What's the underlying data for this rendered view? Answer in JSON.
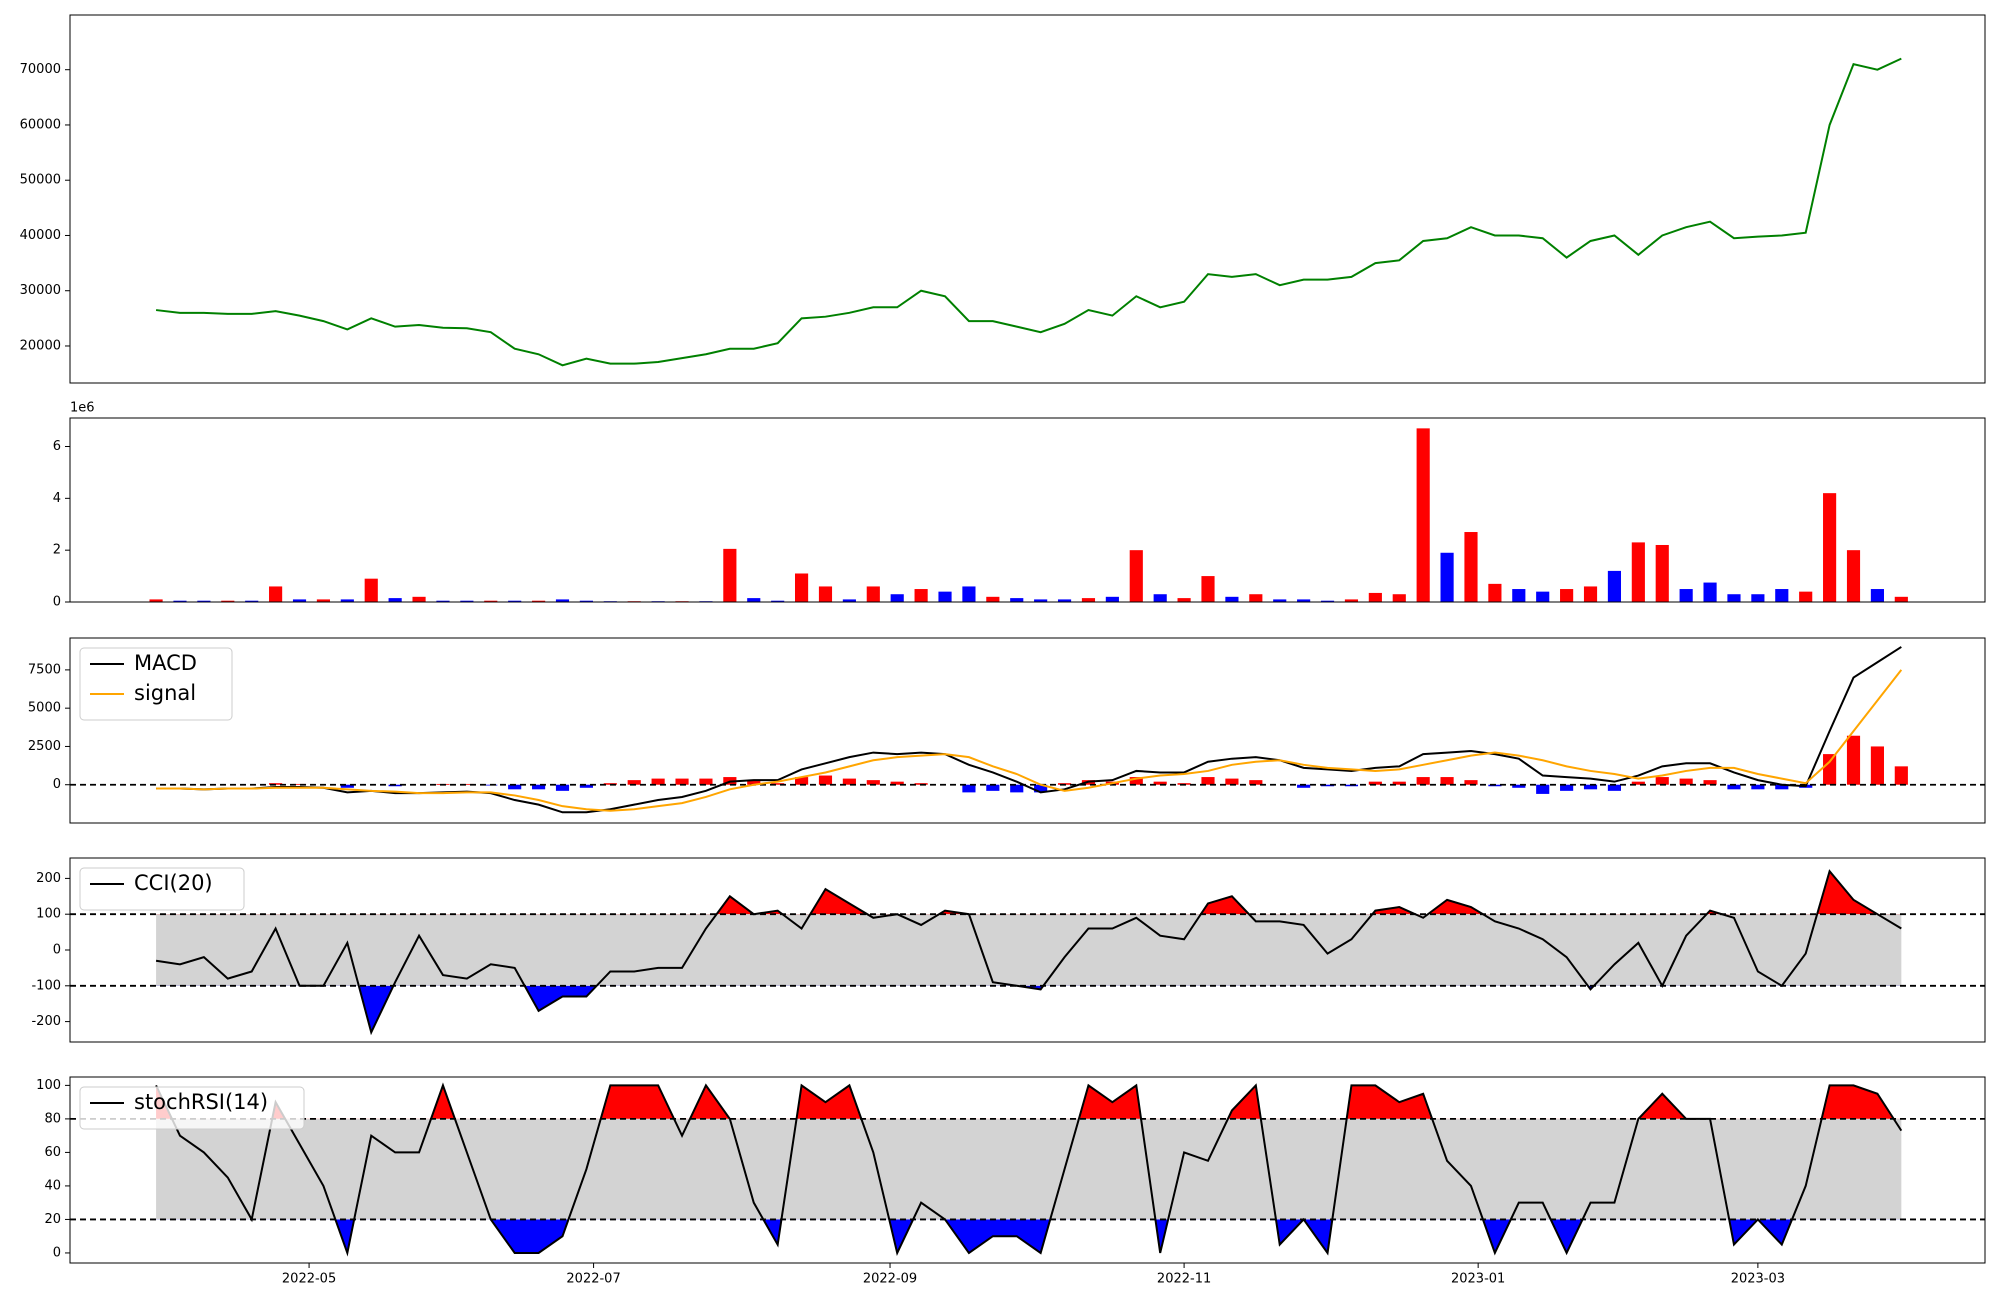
{
  "chart_data": [
    {
      "type": "line",
      "xlim": [
        -3.6,
        76.5
      ],
      "ylim": [
        13300,
        79900
      ],
      "yticks": [
        20000,
        30000,
        40000,
        50000,
        60000,
        70000
      ],
      "series": [
        {
          "color": "#008000",
          "values": [
            26500,
            26000,
            26000,
            25800,
            25800,
            26300,
            25500,
            24500,
            23000,
            25000,
            23500,
            23800,
            23300,
            23200,
            22500,
            19500,
            18500,
            16500,
            17700,
            16800,
            16800,
            17100,
            17800,
            18500,
            19500,
            19500,
            20500,
            25000,
            25300,
            26000,
            27000,
            27000,
            30000,
            29000,
            24500,
            24500,
            23500,
            22500,
            24000,
            26500,
            25500,
            29000,
            27000,
            28000,
            33000,
            32500,
            33000,
            31000,
            32000,
            32000,
            32500,
            35000,
            35500,
            39000,
            39500,
            41500,
            40000,
            40000,
            39500,
            36000,
            39000,
            40000,
            36500,
            40000,
            41500,
            42500,
            39500,
            39800,
            40000,
            40500,
            60000,
            71000,
            70000,
            72000
          ]
        }
      ]
    },
    {
      "type": "bar",
      "xlim": [
        -3.6,
        76.5
      ],
      "ylim": [
        0,
        7100000
      ],
      "offset_label": "1e6",
      "yticks": [
        {
          "value": 0,
          "label": "0"
        },
        {
          "value": 2000000,
          "label": "2"
        },
        {
          "value": 4000000,
          "label": "4"
        },
        {
          "value": 6000000,
          "label": "6"
        }
      ],
      "values": [
        100000,
        50000,
        50000,
        50000,
        50000,
        600000,
        100000,
        100000,
        100000,
        900000,
        150000,
        200000,
        50000,
        50000,
        50000,
        50000,
        50000,
        100000,
        50000,
        30000,
        30000,
        30000,
        30000,
        30000,
        2050000,
        150000,
        50000,
        1100000,
        600000,
        100000,
        600000,
        300000,
        500000,
        400000,
        600000,
        200000,
        150000,
        100000,
        100000,
        150000,
        200000,
        2000000,
        300000,
        150000,
        1000000,
        200000,
        300000,
        100000,
        100000,
        50000,
        100000,
        350000,
        300000,
        6700000,
        1900000,
        2700000,
        700000,
        500000,
        400000,
        500000,
        600000,
        1200000,
        2300000,
        2200000,
        500000,
        750000,
        300000,
        300000,
        500000,
        400000,
        4200000,
        2000000,
        500000,
        200000
      ],
      "colors": [
        "#ff0000",
        "#0000ff",
        "#0000ff",
        "#ff0000",
        "#0000ff",
        "#ff0000",
        "#0000ff",
        "#ff0000",
        "#0000ff",
        "#ff0000",
        "#0000ff",
        "#ff0000",
        "#0000ff",
        "#0000ff",
        "#ff0000",
        "#0000ff",
        "#ff0000",
        "#0000ff",
        "#0000ff",
        "#0000ff",
        "#ff0000",
        "#0000ff",
        "#ff0000",
        "#0000ff",
        "#ff0000",
        "#0000ff",
        "#0000ff",
        "#ff0000",
        "#ff0000",
        "#0000ff",
        "#ff0000",
        "#0000ff",
        "#ff0000",
        "#0000ff",
        "#0000ff",
        "#ff0000",
        "#0000ff",
        "#0000ff",
        "#0000ff",
        "#ff0000",
        "#0000ff",
        "#ff0000",
        "#0000ff",
        "#ff0000",
        "#ff0000",
        "#0000ff",
        "#ff0000",
        "#0000ff",
        "#0000ff",
        "#0000ff",
        "#ff0000",
        "#ff0000",
        "#ff0000",
        "#ff0000",
        "#0000ff",
        "#ff0000",
        "#ff0000",
        "#0000ff",
        "#0000ff",
        "#ff0000",
        "#ff0000",
        "#0000ff",
        "#ff0000",
        "#ff0000",
        "#0000ff",
        "#0000ff",
        "#0000ff",
        "#0000ff",
        "#0000ff",
        "#ff0000",
        "#ff0000",
        "#ff0000",
        "#0000ff",
        "#ff0000"
      ]
    },
    {
      "type": "macd",
      "xlim": [
        -3.6,
        76.5
      ],
      "ylim": [
        -2500,
        9583
      ],
      "yticks": [
        0,
        2500,
        5000,
        7500
      ],
      "hlines": [
        0
      ],
      "series": [
        {
          "name": "MACD",
          "color": "#000000",
          "values": [
            -250,
            -250,
            -300,
            -250,
            -250,
            -150,
            -150,
            -200,
            -500,
            -400,
            -550,
            -550,
            -500,
            -450,
            -550,
            -1000,
            -1300,
            -1800,
            -1800,
            -1600,
            -1300,
            -1000,
            -800,
            -400,
            200,
            300,
            300,
            1000,
            1400,
            1800,
            2100,
            2000,
            2100,
            2000,
            1300,
            800,
            200,
            -500,
            -300,
            200,
            300,
            900,
            800,
            800,
            1500,
            1700,
            1800,
            1600,
            1100,
            1000,
            900,
            1100,
            1200,
            2000,
            2100,
            2200,
            2000,
            1700,
            600,
            500,
            400,
            200,
            600,
            1200,
            1400,
            1400,
            800,
            300,
            0,
            -100,
            3500,
            7000,
            8000,
            9000
          ]
        },
        {
          "name": "signal",
          "color": "#ffa500",
          "values": [
            -250,
            -250,
            -300,
            -250,
            -250,
            -200,
            -200,
            -200,
            -300,
            -400,
            -450,
            -550,
            -550,
            -500,
            -500,
            -700,
            -1000,
            -1400,
            -1600,
            -1700,
            -1600,
            -1400,
            -1200,
            -800,
            -300,
            0,
            200,
            500,
            800,
            1200,
            1600,
            1800,
            1900,
            2000,
            1800,
            1200,
            700,
            0,
            -400,
            -200,
            100,
            400,
            600,
            700,
            900,
            1300,
            1500,
            1600,
            1300,
            1100,
            1000,
            900,
            1000,
            1300,
            1600,
            1900,
            2100,
            1900,
            1600,
            1200,
            900,
            700,
            400,
            600,
            900,
            1100,
            1100,
            700,
            400,
            100,
            1500,
            3500,
            5500,
            7500
          ]
        }
      ],
      "histogram": {
        "up_color": "#ff0000",
        "down_color": "#0000ff",
        "values": [
          0,
          0,
          0,
          0,
          0,
          100,
          50,
          0,
          -200,
          0,
          -100,
          0,
          50,
          50,
          -50,
          -300,
          -300,
          -400,
          -200,
          100,
          300,
          400,
          400,
          400,
          500,
          300,
          100,
          500,
          600,
          400,
          300,
          200,
          100,
          0,
          -500,
          -400,
          -500,
          -500,
          100,
          300,
          200,
          500,
          200,
          100,
          500,
          400,
          300,
          0,
          -200,
          -100,
          -100,
          200,
          200,
          500,
          500,
          300,
          -100,
          -200,
          -600,
          -400,
          -300,
          -400,
          200,
          500,
          400,
          300,
          -300,
          -300,
          -300,
          -200,
          2000,
          3200,
          2500,
          1200
        ]
      }
    },
    {
      "type": "oscillator",
      "xlim": [
        -3.6,
        76.5
      ],
      "ylim": [
        -257,
        257
      ],
      "yticks": [
        -200,
        -100,
        0,
        100,
        200
      ],
      "hlines": [
        100,
        -100
      ],
      "fill_colors": {
        "above": "#ff0000",
        "below": "#0000ff",
        "band": "#d3d3d3"
      },
      "series": [
        {
          "name": "CCI(20)",
          "color": "#000000",
          "values": [
            -30,
            -40,
            -20,
            -80,
            -60,
            60,
            -100,
            -100,
            20,
            -230,
            -90,
            40,
            -70,
            -80,
            -40,
            -50,
            -170,
            -130,
            -130,
            -60,
            -60,
            -50,
            -50,
            60,
            150,
            100,
            110,
            60,
            170,
            130,
            90,
            100,
            70,
            110,
            100,
            -90,
            -100,
            -110,
            -20,
            60,
            60,
            90,
            40,
            30,
            130,
            150,
            80,
            80,
            70,
            -10,
            30,
            110,
            120,
            90,
            140,
            120,
            80,
            60,
            30,
            -20,
            -110,
            -40,
            20,
            -100,
            40,
            110,
            90,
            -60,
            -100,
            -10,
            220,
            140,
            100,
            60
          ]
        }
      ]
    },
    {
      "type": "oscillator",
      "xlim": [
        -3.6,
        76.5
      ],
      "ylim": [
        -6,
        105
      ],
      "yticks": [
        0,
        20,
        40,
        60,
        80,
        100
      ],
      "hlines": [
        80,
        20
      ],
      "fill_colors": {
        "above": "#ff0000",
        "below": "#0000ff",
        "band": "#d3d3d3"
      },
      "xticks": [
        {
          "value": 6.4,
          "label": "2022-05"
        },
        {
          "value": 18.3,
          "label": "2022-07"
        },
        {
          "value": 30.7,
          "label": "2022-09"
        },
        {
          "value": 43,
          "label": "2022-11"
        },
        {
          "value": 55.3,
          "label": "2023-01"
        },
        {
          "value": 67,
          "label": "2023-03"
        }
      ],
      "series": [
        {
          "name": "stochRSI(14)",
          "color": "#000000",
          "values": [
            100,
            70,
            60,
            45,
            20,
            90,
            65,
            40,
            0,
            70,
            60,
            60,
            100,
            60,
            20,
            0,
            0,
            10,
            50,
            100,
            100,
            100,
            70,
            100,
            80,
            30,
            5,
            100,
            90,
            100,
            60,
            0,
            30,
            20,
            0,
            10,
            10,
            0,
            50,
            100,
            90,
            100,
            0,
            60,
            55,
            85,
            100,
            5,
            20,
            0,
            100,
            100,
            90,
            95,
            55,
            40,
            0,
            30,
            30,
            0,
            30,
            30,
            80,
            95,
            80,
            80,
            5,
            20,
            5,
            40,
            100,
            100,
            95,
            73
          ]
        }
      ]
    }
  ]
}
